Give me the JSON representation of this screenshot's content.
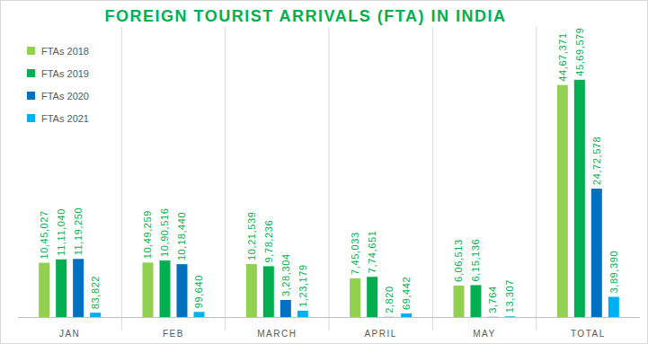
{
  "chart_data": {
    "type": "bar",
    "title": "FOREIGN TOURIST ARRIVALS (FTA) IN INDIA",
    "categories": [
      "JAN",
      "FEB",
      "MARCH",
      "APRIL",
      "MAY",
      "TOTAL"
    ],
    "series": [
      {
        "name": "FTAs 2018",
        "color": "#92d050",
        "values": [
          1045027,
          1049259,
          1021539,
          745033,
          606513,
          4467371
        ],
        "value_labels": [
          "10,45,027",
          "10,49,259",
          "10,21,539",
          "7,45,033",
          "6,06,513",
          "44,67,371"
        ]
      },
      {
        "name": "FTAs 2019",
        "color": "#00b050",
        "values": [
          1111040,
          1090516,
          978236,
          774651,
          615136,
          4569579
        ],
        "value_labels": [
          "11,11,040",
          "10,90,516",
          "9,78,236",
          "7,74,651",
          "6,15,136",
          "45,69,579"
        ]
      },
      {
        "name": "FTAs 2020",
        "color": "#0070c0",
        "values": [
          1119250,
          1018440,
          328304,
          2820,
          3764,
          2472578
        ],
        "value_labels": [
          "11,19,250",
          "10,18,440",
          "3,28,304",
          "2,820",
          "3,764",
          "24,72,578"
        ]
      },
      {
        "name": "FTAs 2021",
        "color": "#00b0f0",
        "values": [
          83822,
          99640,
          123179,
          69442,
          13307,
          389390
        ],
        "value_labels": [
          "83,822",
          "99,640",
          "1,23,179",
          "69,442",
          "13,307",
          "3,89,390"
        ]
      }
    ],
    "ylim": [
      0,
      5500000
    ],
    "tick_labels": "x",
    "legend": "top-left",
    "data_labels": true,
    "grid": false
  }
}
